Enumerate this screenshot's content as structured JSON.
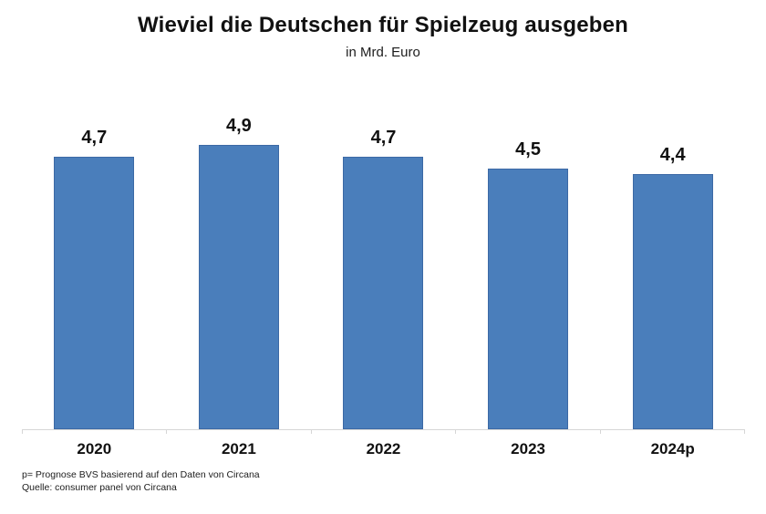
{
  "title": "Wieviel die Deutschen für Spielzeug ausgeben",
  "subtitle": "in Mrd. Euro",
  "footnotes": [
    "p= Prognose BVS basierend auf den Daten von Circana",
    "Quelle: consumer panel von Circana"
  ],
  "colors": {
    "bar_fill": "#4a7ebb",
    "bar_border": "#3c69a5",
    "axis_line": "#d6d6d6",
    "text": "#111111"
  },
  "chart_data": {
    "type": "bar",
    "categories": [
      "2020",
      "2021",
      "2022",
      "2023",
      "2024p"
    ],
    "values": [
      4.7,
      4.9,
      4.7,
      4.5,
      4.4
    ],
    "value_labels": [
      "4,7",
      "4,9",
      "4,7",
      "4,5",
      "4,4"
    ],
    "title": "Wieviel die Deutschen für Spielzeug ausgeben",
    "subtitle": "in Mrd. Euro",
    "xlabel": "",
    "ylabel": "",
    "ylim": [
      0,
      5.83
    ],
    "grid": false,
    "legend": false,
    "data_labels": true,
    "x_axis_ticks": true
  }
}
